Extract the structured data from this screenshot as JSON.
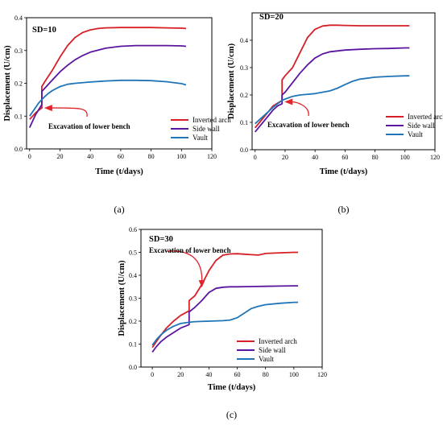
{
  "colors": {
    "inverted_arch": "#d61f26",
    "side_wall": "#5b16a0",
    "vault": "#1f75b8",
    "arrow": "#e0242a"
  },
  "chart_data": [
    {
      "type": "line",
      "panel_label": "(a)",
      "title": "SD=10",
      "xlabel": "Time (t/days)",
      "ylabel": "Displacement (U/cm)",
      "xlim": [
        -2,
        120
      ],
      "ylim": [
        0.0,
        0.4
      ],
      "xticks": [
        0,
        20,
        40,
        60,
        80,
        100,
        120
      ],
      "yticks": [
        0.0,
        0.1,
        0.2,
        0.3,
        0.4
      ],
      "grid": false,
      "legend_position": "bottom-right",
      "annotation": {
        "text": "Excavation of lower bench",
        "arrow_to": [
          8,
          0.125
        ]
      },
      "series": [
        {
          "name": "Inverted arch",
          "color_key": "inverted_arch",
          "x": [
            0,
            2,
            4,
            6,
            8,
            8,
            10,
            15,
            20,
            25,
            30,
            35,
            40,
            45,
            50,
            60,
            70,
            80,
            90,
            100,
            103
          ],
          "y": [
            0.09,
            0.1,
            0.11,
            0.118,
            0.125,
            0.19,
            0.205,
            0.24,
            0.28,
            0.315,
            0.34,
            0.355,
            0.363,
            0.367,
            0.369,
            0.37,
            0.37,
            0.37,
            0.369,
            0.368,
            0.367
          ]
        },
        {
          "name": "Side wall",
          "color_key": "side_wall",
          "x": [
            0,
            2,
            4,
            6,
            8,
            8,
            10,
            15,
            20,
            25,
            30,
            35,
            40,
            50,
            60,
            70,
            80,
            90,
            100,
            103
          ],
          "y": [
            0.065,
            0.085,
            0.105,
            0.12,
            0.135,
            0.175,
            0.185,
            0.21,
            0.235,
            0.255,
            0.272,
            0.285,
            0.295,
            0.307,
            0.313,
            0.315,
            0.315,
            0.315,
            0.314,
            0.313
          ]
        },
        {
          "name": "Vault",
          "color_key": "vault",
          "x": [
            0,
            3,
            6,
            9,
            12,
            15,
            20,
            25,
            30,
            40,
            50,
            60,
            70,
            80,
            90,
            100,
            103
          ],
          "y": [
            0.1,
            0.12,
            0.14,
            0.155,
            0.168,
            0.178,
            0.19,
            0.197,
            0.2,
            0.204,
            0.207,
            0.209,
            0.209,
            0.208,
            0.205,
            0.199,
            0.195
          ]
        }
      ]
    },
    {
      "type": "line",
      "panel_label": "(b)",
      "title": "SD=20",
      "xlabel": "Time (t/days)",
      "ylabel": "Displacement (U/cm)",
      "xlim": [
        -2,
        120
      ],
      "ylim": [
        0.0,
        0.5
      ],
      "xticks": [
        0,
        20,
        40,
        60,
        80,
        100,
        120
      ],
      "yticks": [
        0.0,
        0.1,
        0.2,
        0.3,
        0.4
      ],
      "grid": false,
      "legend_position": "bottom-right",
      "annotation": {
        "text": "Excavation of lower bench",
        "arrow_to": [
          18,
          0.175
        ]
      },
      "series": [
        {
          "name": "Inverted arch",
          "color_key": "inverted_arch",
          "x": [
            0,
            3,
            6,
            9,
            12,
            15,
            18,
            18,
            20,
            25,
            30,
            35,
            40,
            45,
            50,
            55,
            60,
            70,
            80,
            90,
            100,
            103
          ],
          "y": [
            0.08,
            0.1,
            0.12,
            0.14,
            0.16,
            0.17,
            0.18,
            0.255,
            0.27,
            0.3,
            0.355,
            0.41,
            0.44,
            0.452,
            0.455,
            0.455,
            0.454,
            0.453,
            0.453,
            0.453,
            0.453,
            0.453
          ]
        },
        {
          "name": "Side wall",
          "color_key": "side_wall",
          "x": [
            0,
            3,
            6,
            9,
            12,
            15,
            18,
            18,
            20,
            25,
            30,
            35,
            40,
            45,
            50,
            60,
            70,
            80,
            90,
            100,
            103
          ],
          "y": [
            0.065,
            0.085,
            0.105,
            0.125,
            0.145,
            0.16,
            0.168,
            0.2,
            0.21,
            0.245,
            0.28,
            0.31,
            0.335,
            0.35,
            0.358,
            0.364,
            0.367,
            0.369,
            0.37,
            0.372,
            0.372
          ]
        },
        {
          "name": "Vault",
          "color_key": "vault",
          "x": [
            0,
            3,
            6,
            9,
            12,
            15,
            18,
            20,
            25,
            30,
            40,
            50,
            55,
            60,
            65,
            70,
            80,
            90,
            100,
            103
          ],
          "y": [
            0.095,
            0.11,
            0.125,
            0.14,
            0.155,
            0.168,
            0.18,
            0.185,
            0.195,
            0.2,
            0.205,
            0.215,
            0.225,
            0.238,
            0.25,
            0.258,
            0.265,
            0.268,
            0.27,
            0.27
          ]
        }
      ]
    },
    {
      "type": "line",
      "panel_label": "(c)",
      "title": "SD=30",
      "xlabel": "Time (t/days)",
      "ylabel": "Displacement (U/cm)",
      "xlim": [
        -8,
        120
      ],
      "ylim": [
        0.0,
        0.6
      ],
      "xticks": [
        0,
        20,
        40,
        60,
        80,
        100,
        120
      ],
      "yticks": [
        0.0,
        0.1,
        0.2,
        0.3,
        0.4,
        0.5,
        0.6
      ],
      "grid": false,
      "legend_position": "bottom-right",
      "annotation": {
        "text": "Excavation of lower bench",
        "arrow_to": [
          35,
          0.34
        ]
      },
      "series": [
        {
          "name": "Inverted arch",
          "color_key": "inverted_arch",
          "x": [
            0,
            5,
            10,
            15,
            20,
            26,
            26,
            30,
            35,
            40,
            45,
            50,
            55,
            60,
            65,
            70,
            75,
            80,
            90,
            100,
            103
          ],
          "y": [
            0.085,
            0.13,
            0.17,
            0.2,
            0.225,
            0.245,
            0.29,
            0.31,
            0.36,
            0.42,
            0.465,
            0.488,
            0.493,
            0.494,
            0.492,
            0.49,
            0.488,
            0.495,
            0.498,
            0.5,
            0.5
          ]
        },
        {
          "name": "Side wall",
          "color_key": "side_wall",
          "x": [
            0,
            3,
            6,
            10,
            15,
            20,
            26,
            26,
            30,
            35,
            40,
            45,
            50,
            55,
            60,
            70,
            80,
            90,
            100,
            103
          ],
          "y": [
            0.065,
            0.09,
            0.11,
            0.13,
            0.15,
            0.17,
            0.185,
            0.24,
            0.26,
            0.29,
            0.325,
            0.343,
            0.348,
            0.35,
            0.35,
            0.351,
            0.352,
            0.353,
            0.354,
            0.354
          ]
        },
        {
          "name": "Vault",
          "color_key": "vault",
          "x": [
            0,
            3,
            6,
            10,
            15,
            20,
            26,
            30,
            40,
            50,
            55,
            60,
            65,
            70,
            75,
            80,
            90,
            100,
            103
          ],
          "y": [
            0.095,
            0.12,
            0.14,
            0.16,
            0.178,
            0.19,
            0.195,
            0.198,
            0.2,
            0.202,
            0.205,
            0.215,
            0.235,
            0.255,
            0.265,
            0.272,
            0.278,
            0.282,
            0.282
          ]
        }
      ]
    }
  ]
}
